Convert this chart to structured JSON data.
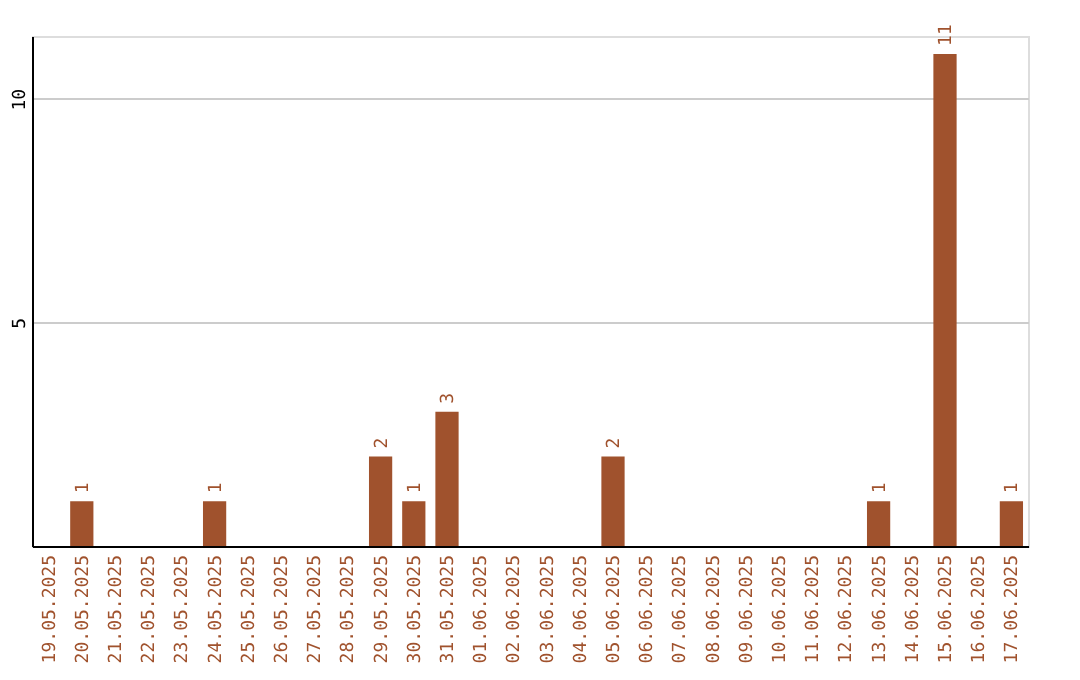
{
  "chart_data": {
    "type": "bar",
    "categories": [
      "19.05.2025",
      "20.05.2025",
      "21.05.2025",
      "22.05.2025",
      "23.05.2025",
      "24.05.2025",
      "25.05.2025",
      "26.05.2025",
      "27.05.2025",
      "28.05.2025",
      "29.05.2025",
      "30.05.2025",
      "31.05.2025",
      "01.06.2025",
      "02.06.2025",
      "03.06.2025",
      "04.06.2025",
      "05.06.2025",
      "06.06.2025",
      "07.06.2025",
      "08.06.2025",
      "09.06.2025",
      "10.06.2025",
      "11.06.2025",
      "12.06.2025",
      "13.06.2025",
      "14.06.2025",
      "15.06.2025",
      "16.06.2025",
      "17.06.2025"
    ],
    "values": [
      0,
      1,
      0,
      0,
      0,
      1,
      0,
      0,
      0,
      0,
      2,
      1,
      3,
      0,
      0,
      0,
      0,
      2,
      0,
      0,
      0,
      0,
      0,
      0,
      0,
      1,
      0,
      11,
      0,
      1
    ],
    "value_labels": [
      null,
      "1",
      null,
      null,
      null,
      "1",
      null,
      null,
      null,
      null,
      "2",
      "1",
      "3",
      null,
      null,
      null,
      null,
      "2",
      null,
      null,
      null,
      null,
      null,
      null,
      null,
      "1",
      null,
      "11",
      null,
      "1"
    ],
    "color": "#a0522d",
    "ylim": [
      0,
      11.4
    ],
    "yticks": [
      5,
      10
    ],
    "grid": "y"
  }
}
